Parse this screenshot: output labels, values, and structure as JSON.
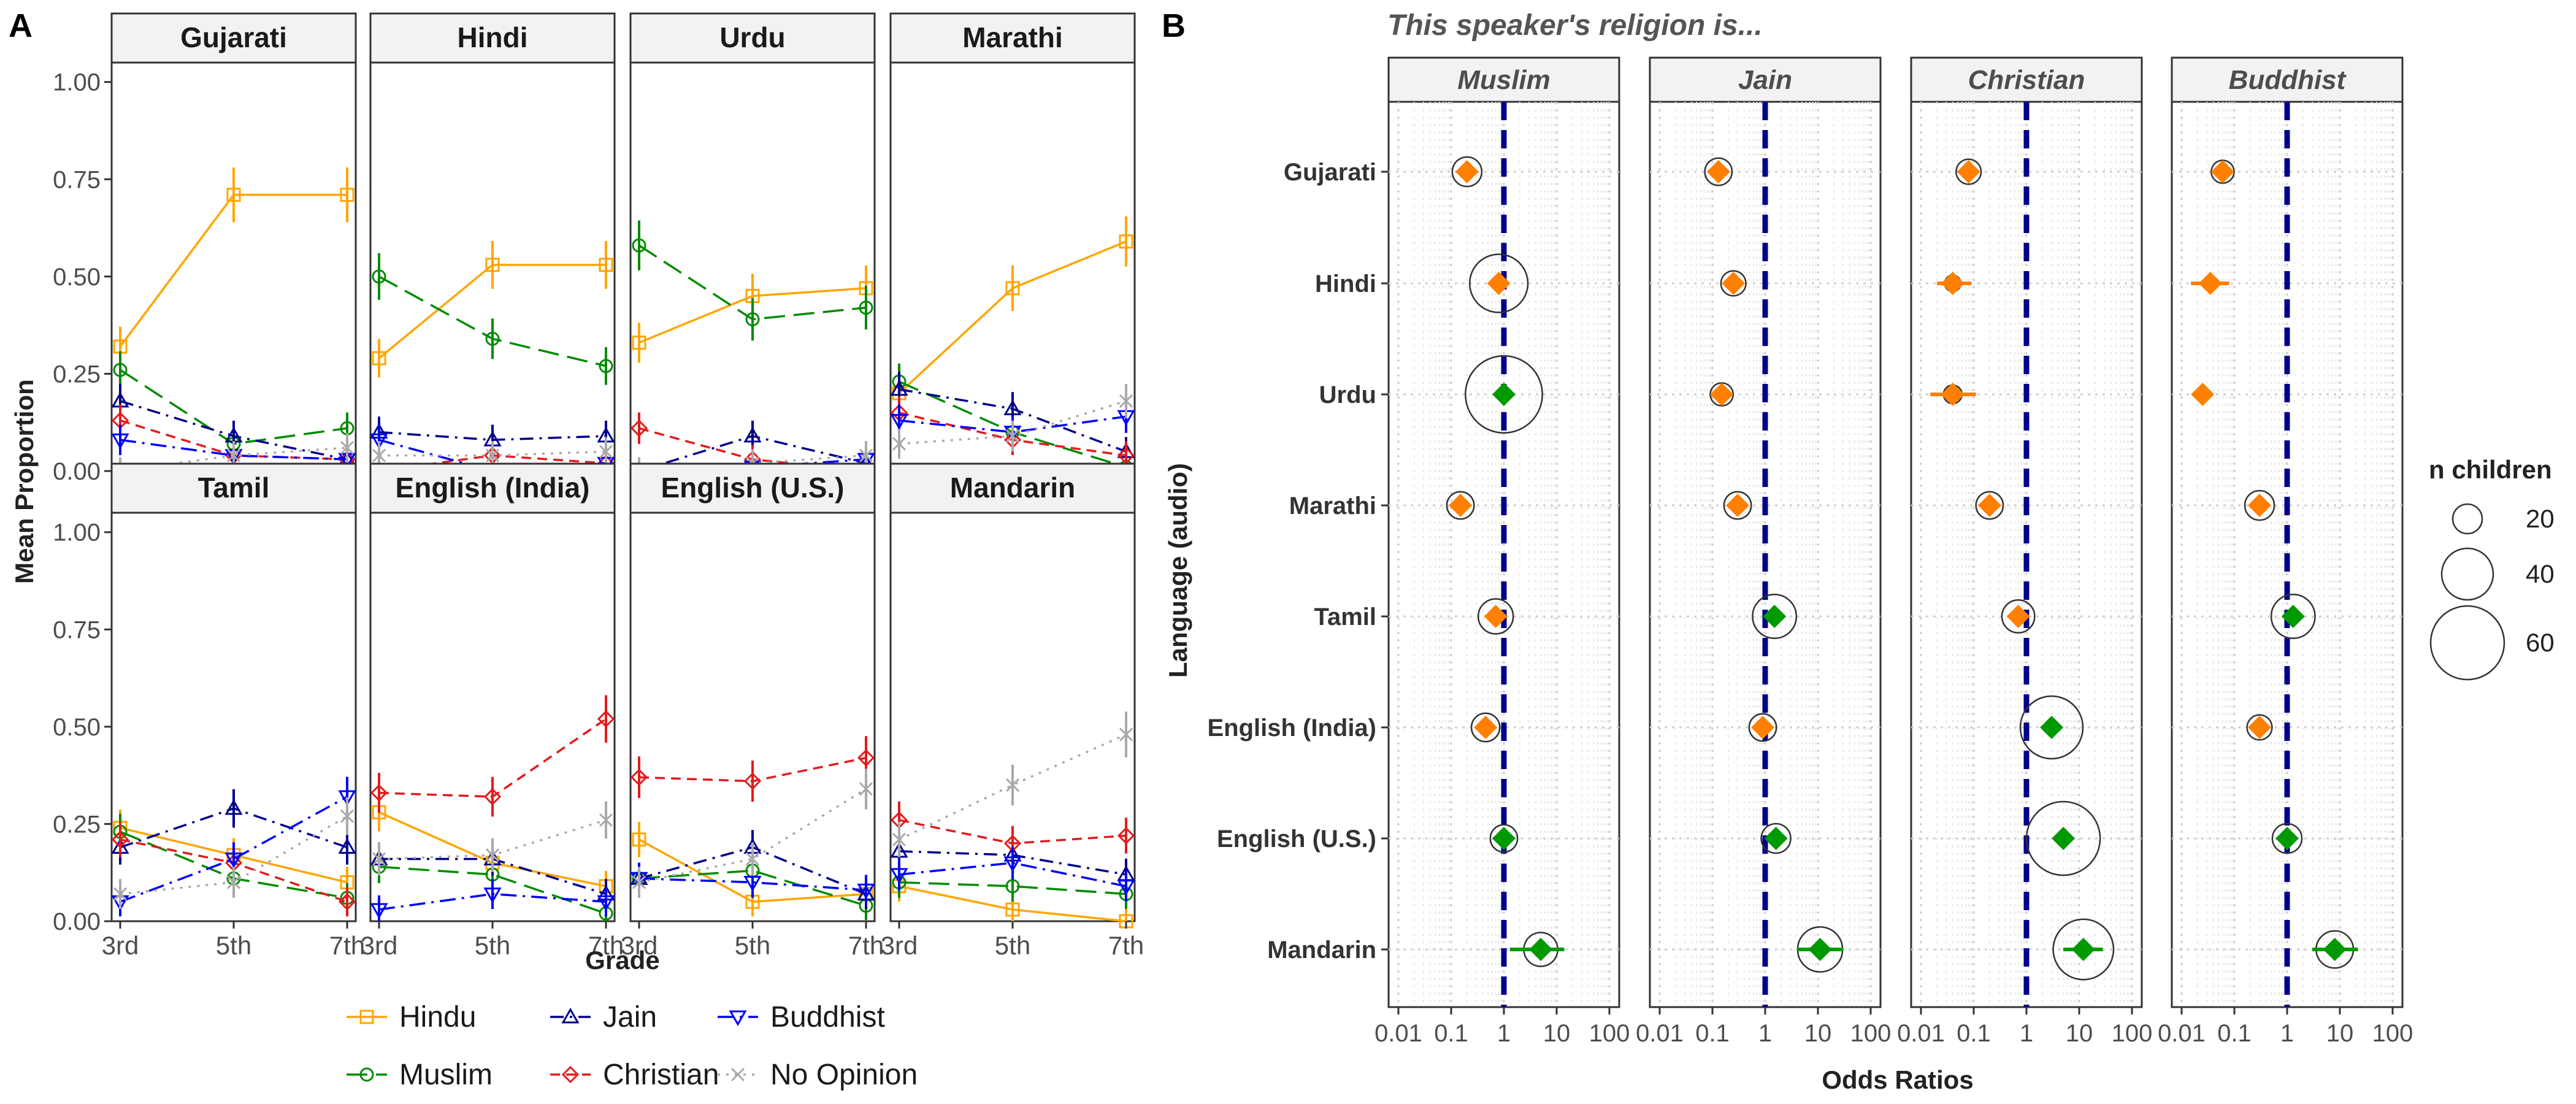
{
  "panel_a": {
    "label": "A",
    "xlabel": "Grade",
    "ylabel": "Mean Proportion",
    "x_ticks": [
      "3rd",
      "5th",
      "7th"
    ],
    "y_ticks": [
      "0.00",
      "0.25",
      "0.50",
      "0.75",
      "1.00"
    ],
    "legend": [
      "Hindu",
      "Muslim",
      "Jain",
      "Christian",
      "Buddhist",
      "No Opinion"
    ]
  },
  "panel_b": {
    "label": "B",
    "title": "This speaker's religion is...",
    "xlabel": "Odds Ratios",
    "ylabel": "Language (audio)",
    "x_ticks": [
      "0.01",
      "0.1",
      "1",
      "10",
      "100"
    ],
    "size_legend": {
      "title": "n children",
      "labels": [
        "20",
        "40",
        "60"
      ]
    }
  },
  "colors": {
    "Hindu": "#FFA500",
    "Muslim": "#008B00",
    "Jain": "#00008B",
    "Christian": "#E41A1C",
    "Buddhist": "#0000FF",
    "No Opinion": "#A9A9A9",
    "below_one": "#FF7F00",
    "above_one": "#009900",
    "ref_line": "#00008B"
  },
  "chart_data": [
    {
      "type": "line",
      "title": "",
      "xlabel": "Grade",
      "ylabel": "Mean Proportion",
      "ylim": [
        0,
        1.05
      ],
      "categories": [
        "3rd",
        "5th",
        "7th"
      ],
      "legend_position": "bottom",
      "grid": false,
      "facets": [
        {
          "name": "Gujarati",
          "series": [
            {
              "name": "Hindu",
              "values": [
                0.32,
                0.71,
                0.71
              ]
            },
            {
              "name": "Muslim",
              "values": [
                0.26,
                0.07,
                0.11
              ]
            },
            {
              "name": "Jain",
              "values": [
                0.18,
                0.09,
                0.03
              ]
            },
            {
              "name": "Christian",
              "values": [
                0.13,
                0.04,
                0.03
              ]
            },
            {
              "name": "Buddhist",
              "values": [
                0.08,
                0.04,
                0.03
              ]
            },
            {
              "name": "No Opinion",
              "values": [
                0.0,
                0.04,
                0.06
              ]
            }
          ]
        },
        {
          "name": "Hindi",
          "series": [
            {
              "name": "Hindu",
              "values": [
                0.29,
                0.53,
                0.53
              ]
            },
            {
              "name": "Muslim",
              "values": [
                0.5,
                0.34,
                0.27
              ]
            },
            {
              "name": "Jain",
              "values": [
                0.1,
                0.08,
                0.09
              ]
            },
            {
              "name": "Christian",
              "values": [
                0.0,
                0.04,
                0.02
              ]
            },
            {
              "name": "Buddhist",
              "values": [
                0.08,
                0.0,
                0.02
              ]
            },
            {
              "name": "No Opinion",
              "values": [
                0.04,
                0.04,
                0.05
              ]
            }
          ]
        },
        {
          "name": "Urdu",
          "series": [
            {
              "name": "Hindu",
              "values": [
                0.33,
                0.45,
                0.47
              ]
            },
            {
              "name": "Muslim",
              "values": [
                0.58,
                0.39,
                0.42
              ]
            },
            {
              "name": "Jain",
              "values": [
                0.0,
                0.09,
                0.02
              ]
            },
            {
              "name": "Christian",
              "values": [
                0.11,
                0.03,
                0.0
              ]
            },
            {
              "name": "Buddhist",
              "values": [
                0.0,
                0.01,
                0.03
              ]
            },
            {
              "name": "No Opinion",
              "values": [
                0.0,
                0.02,
                0.04
              ]
            }
          ]
        },
        {
          "name": "Marathi",
          "series": [
            {
              "name": "Hindu",
              "values": [
                0.2,
                0.47,
                0.59
              ]
            },
            {
              "name": "Muslim",
              "values": [
                0.23,
                0.1,
                0.01
              ]
            },
            {
              "name": "Jain",
              "values": [
                0.21,
                0.16,
                0.05
              ]
            },
            {
              "name": "Christian",
              "values": [
                0.15,
                0.08,
                0.04
              ]
            },
            {
              "name": "Buddhist",
              "values": [
                0.13,
                0.1,
                0.14
              ]
            },
            {
              "name": "No Opinion",
              "values": [
                0.07,
                0.09,
                0.18
              ]
            }
          ]
        },
        {
          "name": "Tamil",
          "series": [
            {
              "name": "Hindu",
              "values": [
                0.24,
                0.17,
                0.1
              ]
            },
            {
              "name": "Muslim",
              "values": [
                0.23,
                0.11,
                0.06
              ]
            },
            {
              "name": "Jain",
              "values": [
                0.19,
                0.29,
                0.19
              ]
            },
            {
              "name": "Christian",
              "values": [
                0.21,
                0.15,
                0.05
              ]
            },
            {
              "name": "Buddhist",
              "values": [
                0.05,
                0.16,
                0.32
              ]
            },
            {
              "name": "No Opinion",
              "values": [
                0.07,
                0.1,
                0.27
              ]
            }
          ]
        },
        {
          "name": "English (India)",
          "series": [
            {
              "name": "Hindu",
              "values": [
                0.28,
                0.15,
                0.09
              ]
            },
            {
              "name": "Muslim",
              "values": [
                0.14,
                0.12,
                0.02
              ]
            },
            {
              "name": "Jain",
              "values": [
                0.16,
                0.16,
                0.07
              ]
            },
            {
              "name": "Christian",
              "values": [
                0.33,
                0.32,
                0.52
              ]
            },
            {
              "name": "Buddhist",
              "values": [
                0.03,
                0.07,
                0.05
              ]
            },
            {
              "name": "No Opinion",
              "values": [
                0.16,
                0.17,
                0.26
              ]
            }
          ]
        },
        {
          "name": "English (U.S.)",
          "series": [
            {
              "name": "Hindu",
              "values": [
                0.21,
                0.05,
                0.07
              ]
            },
            {
              "name": "Muslim",
              "values": [
                0.11,
                0.13,
                0.04
              ]
            },
            {
              "name": "Jain",
              "values": [
                0.11,
                0.19,
                0.07
              ]
            },
            {
              "name": "Christian",
              "values": [
                0.37,
                0.36,
                0.42
              ]
            },
            {
              "name": "Buddhist",
              "values": [
                0.11,
                0.1,
                0.08
              ]
            },
            {
              "name": "No Opinion",
              "values": [
                0.1,
                0.16,
                0.34
              ]
            }
          ]
        },
        {
          "name": "Mandarin",
          "series": [
            {
              "name": "Hindu",
              "values": [
                0.09,
                0.03,
                0.0
              ]
            },
            {
              "name": "Muslim",
              "values": [
                0.1,
                0.09,
                0.07
              ]
            },
            {
              "name": "Jain",
              "values": [
                0.18,
                0.17,
                0.12
              ]
            },
            {
              "name": "Christian",
              "values": [
                0.26,
                0.2,
                0.22
              ]
            },
            {
              "name": "Buddhist",
              "values": [
                0.12,
                0.15,
                0.09
              ]
            },
            {
              "name": "No Opinion",
              "values": [
                0.21,
                0.35,
                0.48
              ]
            }
          ]
        }
      ]
    },
    {
      "type": "scatter",
      "title": "This speaker's religion is...",
      "xlabel": "Odds Ratios",
      "ylabel": "Language (audio)",
      "x_scale": "log",
      "xlim": [
        0.01,
        100
      ],
      "reference_line": 1,
      "grid": true,
      "languages": [
        "Gujarati",
        "Hindi",
        "Urdu",
        "Marathi",
        "Tamil",
        "English (India)",
        "English (U.S.)",
        "Mandarin"
      ],
      "facets": [
        {
          "name": "Muslim",
          "points": [
            {
              "language": "Gujarati",
              "or": 0.2,
              "ci": [
                0.13,
                0.3
              ],
              "n": 20
            },
            {
              "language": "Hindi",
              "or": 0.8,
              "ci": [
                0.6,
                1.05
              ],
              "n": 46
            },
            {
              "language": "Urdu",
              "or": 1.0,
              "ci": [
                0.82,
                1.2
              ],
              "n": 63
            },
            {
              "language": "Marathi",
              "or": 0.15,
              "ci": [
                0.1,
                0.22
              ],
              "n": 18
            },
            {
              "language": "Tamil",
              "or": 0.7,
              "ci": [
                0.5,
                0.95
              ],
              "n": 25
            },
            {
              "language": "English (India)",
              "or": 0.45,
              "ci": [
                0.32,
                0.62
              ],
              "n": 19
            },
            {
              "language": "English (U.S.)",
              "or": 1.0,
              "ci": [
                0.78,
                1.3
              ],
              "n": 18
            },
            {
              "language": "Mandarin",
              "or": 5.0,
              "ci": [
                1.3,
                14.0
              ],
              "n": 24
            }
          ]
        },
        {
          "name": "Jain",
          "points": [
            {
              "language": "Gujarati",
              "or": 0.13,
              "ci": [
                0.09,
                0.19
              ],
              "n": 18
            },
            {
              "language": "Hindi",
              "or": 0.25,
              "ci": [
                0.18,
                0.34
              ],
              "n": 16
            },
            {
              "language": "Urdu",
              "or": 0.15,
              "ci": [
                0.11,
                0.2
              ],
              "n": 14
            },
            {
              "language": "Marathi",
              "or": 0.3,
              "ci": [
                0.2,
                0.42
              ],
              "n": 18
            },
            {
              "language": "Tamil",
              "or": 1.5,
              "ci": [
                1.0,
                2.2
              ],
              "n": 33
            },
            {
              "language": "English (India)",
              "or": 0.9,
              "ci": [
                0.6,
                1.3
              ],
              "n": 18
            },
            {
              "language": "English (U.S.)",
              "or": 1.6,
              "ci": [
                1.1,
                2.3
              ],
              "n": 20
            },
            {
              "language": "Mandarin",
              "or": 11.0,
              "ci": [
                4.0,
                30.0
              ],
              "n": 34
            }
          ]
        },
        {
          "name": "Christian",
          "points": [
            {
              "language": "Gujarati",
              "or": 0.08,
              "ci": [
                0.06,
                0.11
              ],
              "n": 16
            },
            {
              "language": "Hindi",
              "or": 0.04,
              "ci": [
                0.02,
                0.09
              ],
              "n": 8
            },
            {
              "language": "Urdu",
              "or": 0.04,
              "ci": [
                0.015,
                0.11
              ],
              "n": 10
            },
            {
              "language": "Marathi",
              "or": 0.2,
              "ci": [
                0.14,
                0.28
              ],
              "n": 18
            },
            {
              "language": "Tamil",
              "or": 0.7,
              "ci": [
                0.5,
                0.95
              ],
              "n": 23
            },
            {
              "language": "English (India)",
              "or": 3.0,
              "ci": [
                2.2,
                4.0
              ],
              "n": 50
            },
            {
              "language": "English (U.S.)",
              "or": 5.0,
              "ci": [
                3.5,
                7.0
              ],
              "n": 60
            },
            {
              "language": "Mandarin",
              "or": 12.0,
              "ci": [
                5.0,
                28.0
              ],
              "n": 48
            }
          ]
        },
        {
          "name": "Buddhist",
          "points": [
            {
              "language": "Gujarati",
              "or": 0.06,
              "ci": [
                0.045,
                0.08
              ],
              "n": 14
            },
            {
              "language": "Hindi",
              "or": 0.035,
              "ci": [
                0.015,
                0.08
              ],
              "n": 6
            },
            {
              "language": "Urdu",
              "or": 0.025,
              "ci": [
                0.02,
                0.03
              ],
              "n": 5
            },
            {
              "language": "Marathi",
              "or": 0.3,
              "ci": [
                0.22,
                0.4
              ],
              "n": 20
            },
            {
              "language": "Tamil",
              "or": 1.3,
              "ci": [
                0.95,
                1.75
              ],
              "n": 33
            },
            {
              "language": "English (India)",
              "or": 0.3,
              "ci": [
                0.22,
                0.4
              ],
              "n": 16
            },
            {
              "language": "English (U.S.)",
              "or": 1.0,
              "ci": [
                0.75,
                1.3
              ],
              "n": 20
            },
            {
              "language": "Mandarin",
              "or": 8.0,
              "ci": [
                3.0,
                22.0
              ],
              "n": 27
            }
          ]
        }
      ]
    }
  ]
}
